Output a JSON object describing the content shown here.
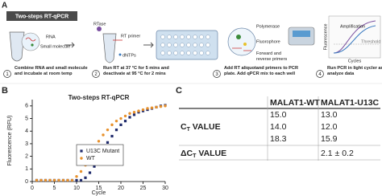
{
  "panel_a": {
    "label": "A",
    "title": "Two-steps RT-qPCR",
    "labels": {
      "rna": "RNA",
      "small_molecule": "Small molecule",
      "rtase": "RTase",
      "rt_primer": "RT primer",
      "dntps": "dNTPs",
      "polymerase": "Polymerase",
      "fluorophore": "Fluorophore",
      "primers": "Forward and reverse primers",
      "amplification": "Amplification",
      "threshold": "Threshold",
      "fluorescence": "Fluorescence",
      "cycles": "Cycles"
    },
    "steps": [
      {
        "number": 1,
        "text": "Combine RNA and small molecule and incubate at room temp"
      },
      {
        "number": 2,
        "text": "Run RT at 37 °C for 5 mins and deactivate at 95 °C for 2 mins"
      },
      {
        "number": 3,
        "text": "Add RT aliquotand primers to PCR plate. Add qPCR mix to each well"
      },
      {
        "number": 4,
        "text": "Run PCR in light cycler and analyze data"
      }
    ]
  },
  "chart_data": {
    "type": "scatter",
    "label": "B",
    "title": "Two-steps RT-qPCR",
    "x_label": "Cycle",
    "y_label": "Fluorescence (RFU)",
    "x": [
      1,
      2,
      3,
      4,
      5,
      6,
      7,
      8,
      9,
      10,
      11,
      12,
      13,
      14,
      15,
      16,
      17,
      18,
      19,
      20,
      21,
      22,
      23,
      24,
      25,
      26,
      27,
      28,
      29,
      30
    ],
    "series": [
      {
        "name": "U13C Mutant",
        "color": "#1f2a6b",
        "marker": "square",
        "values": [
          0.1,
          0.1,
          0.1,
          0.1,
          0.1,
          0.1,
          0.1,
          0.1,
          0.1,
          0.1,
          0.1,
          0.3,
          0.7,
          1.2,
          1.8,
          2.5,
          3.1,
          3.6,
          4.1,
          4.5,
          4.8,
          5.1,
          5.3,
          5.5,
          5.6,
          5.7,
          5.8,
          5.9,
          6.0,
          6.05
        ]
      },
      {
        "name": "WT",
        "color": "#e8912b",
        "marker": "circle",
        "values": [
          0.1,
          0.1,
          0.1,
          0.1,
          0.1,
          0.1,
          0.1,
          0.1,
          0.1,
          0.4,
          0.8,
          1.3,
          2.0,
          2.6,
          3.2,
          3.7,
          4.1,
          4.5,
          4.8,
          5.0,
          5.2,
          5.4,
          5.5,
          5.6,
          5.7,
          5.8,
          5.85,
          5.9,
          5.95,
          6.0
        ]
      }
    ],
    "xlim": [
      0,
      30
    ],
    "ylim": [
      0,
      6.5
    ],
    "xticks": [
      0,
      5,
      10,
      15,
      20,
      25,
      30
    ],
    "yticks": [
      0,
      1,
      2,
      3,
      4,
      5,
      6
    ],
    "legend": "center"
  },
  "panel_c": {
    "label": "C",
    "columns": [
      "MALAT1-WT",
      "MALAT1-U13C"
    ],
    "rows": [
      {
        "label": {
          "prefix": "",
          "main": "C",
          "sub": "T",
          "rest": " VALUE"
        },
        "values": [
          [
            "15.0",
            "13.0"
          ],
          [
            "14.0",
            "12.0"
          ],
          [
            "18.3",
            "15.9"
          ]
        ]
      },
      {
        "label": {
          "prefix": "Δ",
          "main": "C",
          "sub": "T",
          "rest": " VALUE"
        },
        "values": [
          [
            null,
            "2.1 ± 0.2"
          ]
        ]
      }
    ]
  }
}
